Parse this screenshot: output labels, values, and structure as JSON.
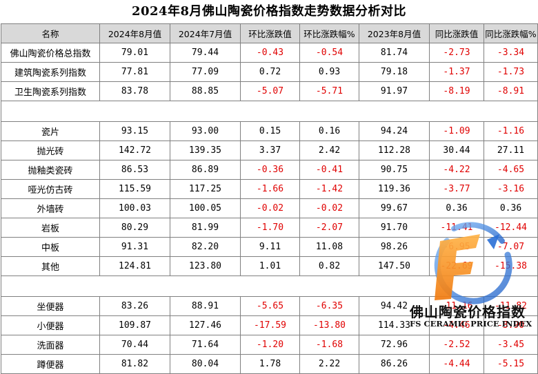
{
  "title": "2024年8月佛山陶瓷价格指数走势数据分析对比",
  "headers": [
    "名称",
    "2024年8月值",
    "2024年7月值",
    "环比涨跌值",
    "环比涨跌幅%",
    "2023年8月值",
    "同比涨跌值",
    "同比涨跌幅%"
  ],
  "groups": [
    [
      [
        "佛山陶瓷价格总指数",
        "79.01",
        "79.44",
        "-0.43",
        "-0.54",
        "81.74",
        "-2.73",
        "-3.34"
      ],
      [
        "建筑陶瓷系列指数",
        "77.81",
        "77.09",
        "0.72",
        "0.93",
        "79.18",
        "-1.37",
        "-1.73"
      ],
      [
        "卫生陶瓷系列指数",
        "83.78",
        "88.85",
        "-5.07",
        "-5.71",
        "91.97",
        "-8.19",
        "-8.91"
      ]
    ],
    [
      [
        "瓷片",
        "93.15",
        "93.00",
        "0.15",
        "0.16",
        "94.24",
        "-1.09",
        "-1.16"
      ],
      [
        "抛光砖",
        "142.72",
        "139.35",
        "3.37",
        "2.42",
        "112.28",
        "30.44",
        "27.11"
      ],
      [
        "抛釉类瓷砖",
        "86.53",
        "86.89",
        "-0.36",
        "-0.41",
        "90.75",
        "-4.22",
        "-4.65"
      ],
      [
        "哑光仿古砖",
        "115.59",
        "117.25",
        "-1.66",
        "-1.42",
        "119.36",
        "-3.77",
        "-3.16"
      ],
      [
        "外墙砖",
        "100.03",
        "100.05",
        "-0.02",
        "-0.02",
        "99.67",
        "0.36",
        "0.36"
      ],
      [
        "岩板",
        "80.29",
        "81.99",
        "-1.70",
        "-2.07",
        "91.70",
        "-11.41",
        "-12.44"
      ],
      [
        "中板",
        "91.31",
        "82.20",
        "9.11",
        "11.08",
        "98.26",
        "-6.95",
        "-7.07"
      ],
      [
        "其他",
        "124.81",
        "123.80",
        "1.01",
        "0.82",
        "147.50",
        "-22.69",
        "-15.38"
      ]
    ],
    [
      [
        "坐便器",
        "83.26",
        "88.91",
        "-5.65",
        "-6.35",
        "94.42",
        "-11.16",
        "-11.82"
      ],
      [
        "小便器",
        "109.87",
        "127.46",
        "-17.59",
        "-13.80",
        "114.33",
        "-4.46",
        "-3.90"
      ],
      [
        "洗面器",
        "70.44",
        "71.64",
        "-1.20",
        "-1.68",
        "72.96",
        "-2.52",
        "-3.45"
      ],
      [
        "蹲便器",
        "81.82",
        "80.04",
        "1.78",
        "2.22",
        "86.26",
        "-4.44",
        "-5.15"
      ]
    ]
  ],
  "watermark": {
    "logo_letter": "F",
    "name_cn": "佛山陶瓷价格指数",
    "name_en": "FS CERAMIC PRICE INDEX"
  }
}
